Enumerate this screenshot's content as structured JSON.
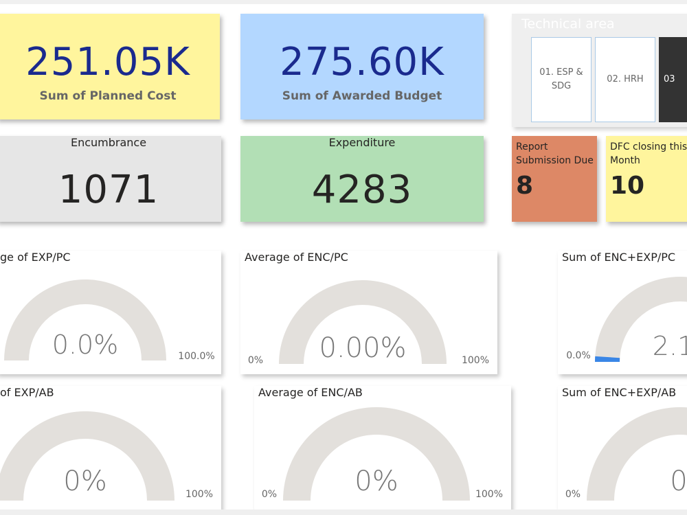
{
  "kpis": {
    "planned_cost": {
      "value": "251.05K",
      "label": "Sum of Planned Cost",
      "bg": "#fff59d"
    },
    "awarded_budget": {
      "value": "275.60K",
      "label": "Sum of Awarded Budget",
      "bg": "#b3d7ff"
    },
    "encumbrance": {
      "label": "Encumbrance",
      "value": "1071",
      "bg": "#e6e6e6"
    },
    "expenditure": {
      "label": "Expenditure",
      "value": "4283",
      "bg": "#b2dfb5"
    },
    "report_due": {
      "label": "Report Submission Due",
      "value": "8",
      "bg": "#dd8866"
    },
    "dfc_closing": {
      "label": "DFC closing this Month",
      "value": "10",
      "bg": "#fff59d"
    }
  },
  "slicer": {
    "title": "Technical area",
    "items": [
      {
        "label": "01. ESP & SDG",
        "selected": false
      },
      {
        "label": "02. HRH",
        "selected": false
      },
      {
        "label": "03",
        "selected": true
      }
    ]
  },
  "gauges": {
    "exp_pc": {
      "title": "ge of EXP/PC",
      "value_text": "0.0%",
      "min_label": "",
      "max_label": "100.0%",
      "fraction": 0
    },
    "enc_pc": {
      "title": "Average of ENC/PC",
      "value_text": "0.00%",
      "min_label": "0%",
      "max_label": "100%",
      "fraction": 0
    },
    "encexp_pc": {
      "title": "Sum of ENC+EXP/PC",
      "value_text": "2.1",
      "min_label": "0.0%",
      "max_label": "",
      "fraction": 0.021
    },
    "exp_ab": {
      "title": "of EXP/AB",
      "value_text": "0%",
      "min_label": "",
      "max_label": "100%",
      "fraction": 0
    },
    "enc_ab": {
      "title": "Average of ENC/AB",
      "value_text": "0%",
      "min_label": "0%",
      "max_label": "100%",
      "fraction": 0
    },
    "encexp_ab": {
      "title": "Sum of ENC+EXP/AB",
      "value_text": "0",
      "min_label": "0%",
      "max_label": "",
      "fraction": 0
    }
  },
  "colors": {
    "gauge_track": "#e3e0dc",
    "gauge_fill": "#3a86e6",
    "kpi_blue": "#1a237e"
  }
}
